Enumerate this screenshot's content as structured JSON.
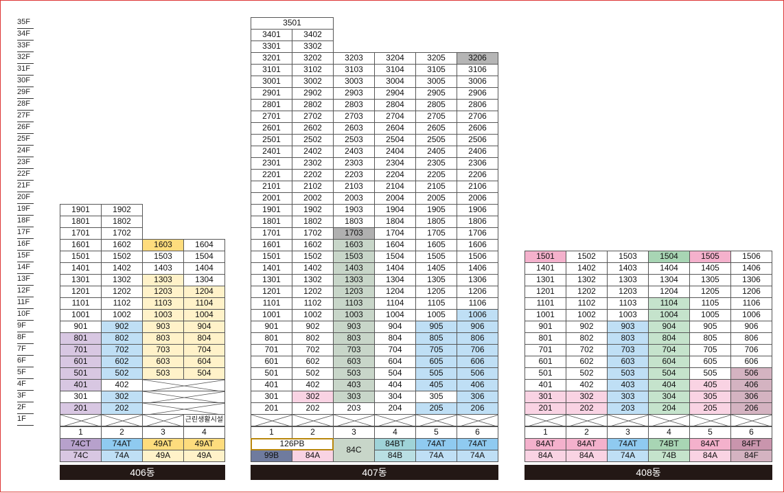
{
  "floor_labels": [
    "35F",
    "34F",
    "33F",
    "32F",
    "31F",
    "30F",
    "29F",
    "28F",
    "27F",
    "26F",
    "25F",
    "24F",
    "23F",
    "22F",
    "21F",
    "20F",
    "19F",
    "18F",
    "17F",
    "16F",
    "15F",
    "14F",
    "13F",
    "12F",
    "11F",
    "10F",
    "9F",
    "8F",
    "7F",
    "6F",
    "5F",
    "4F",
    "3F",
    "2F",
    "1F"
  ],
  "colors": {
    "white": "#ffffff",
    "purple": "#d8c7e2",
    "purple_dark": "#b7a1cc",
    "blue": "#bfdff5",
    "blue_mid": "#8fcaf0",
    "yellow": "#fff2c9",
    "yellow_dark": "#fedc7d",
    "sage": "#c8d6c9",
    "sage_top": "#b0b0b0",
    "pink": "#f9d3e3",
    "pink_mid": "#f4b1cc",
    "mauve": "#d4b3c1",
    "mauve_dark": "#c995ad",
    "green": "#a8d5b4",
    "green_light": "#c5e3cc",
    "gray_top": "#b5b5b5",
    "navy": "#6f7b9e",
    "teal": "#9fd3d8",
    "teal_light": "#b9dfe3"
  },
  "buildings": [
    {
      "name": "406동",
      "line_numbers": [
        "1",
        "2",
        "3",
        "4"
      ],
      "lines": [
        {
          "type_top": "74CT",
          "type_bottom": "74C",
          "top_color": "purple_dark",
          "bottom_color": "purple"
        },
        {
          "type_top": "74AT",
          "type_bottom": "74A",
          "top_color": "blue_mid",
          "bottom_color": "blue"
        },
        {
          "type_top": "49AT",
          "type_bottom": "49A",
          "top_color": "yellow_dark",
          "bottom_color": "yellow"
        },
        {
          "type_top": "49AT",
          "type_bottom": "49A",
          "top_color": "yellow_dark",
          "bottom_color": "yellow"
        }
      ],
      "amenity_label": "근린생활시설"
    },
    {
      "name": "407동",
      "line_numbers": [
        "1",
        "2",
        "3",
        "4",
        "5",
        "6"
      ],
      "merged_top_label": "126PB",
      "lines": [
        {
          "type_bottom": "99B",
          "bottom_color": "navy"
        },
        {
          "type_bottom": "84A",
          "bottom_color": "pink"
        },
        {
          "type_merged": "84C",
          "bottom_color": "sage"
        },
        {
          "type_top": "84BT",
          "type_bottom": "84B",
          "top_color": "teal",
          "bottom_color": "teal_light"
        },
        {
          "type_top": "74AT",
          "type_bottom": "74A",
          "top_color": "blue_mid",
          "bottom_color": "blue"
        },
        {
          "type_top": "74AT",
          "type_bottom": "74A",
          "top_color": "blue_mid",
          "bottom_color": "blue"
        }
      ]
    },
    {
      "name": "408동",
      "line_numbers": [
        "1",
        "2",
        "3",
        "4",
        "5",
        "6"
      ],
      "lines": [
        {
          "type_top": "84AT",
          "type_bottom": "84A",
          "top_color": "pink_mid",
          "bottom_color": "pink"
        },
        {
          "type_top": "84AT",
          "type_bottom": "84A",
          "top_color": "pink_mid",
          "bottom_color": "pink"
        },
        {
          "type_top": "74AT",
          "type_bottom": "74A",
          "top_color": "blue_mid",
          "bottom_color": "blue"
        },
        {
          "type_top": "74BT",
          "type_bottom": "74B",
          "top_color": "green",
          "bottom_color": "green_light"
        },
        {
          "type_top": "84AT",
          "type_bottom": "84A",
          "top_color": "pink_mid",
          "bottom_color": "pink"
        },
        {
          "type_top": "84FT",
          "type_bottom": "84F",
          "top_color": "mauve_dark",
          "bottom_color": "mauve"
        }
      ]
    }
  ],
  "units_406": [
    [
      "1901",
      "white"
    ],
    [
      "1902",
      "white"
    ],
    [
      "1801",
      "white"
    ],
    [
      "1802",
      "white"
    ],
    [
      "1701",
      "white"
    ],
    [
      "1702",
      "white"
    ],
    [
      "1601",
      "white"
    ],
    [
      "1602",
      "white"
    ],
    [
      "1603",
      "yellow_dark"
    ],
    [
      "1604",
      "white"
    ],
    [
      "1501",
      "white"
    ],
    [
      "1502",
      "white"
    ],
    [
      "1503",
      "white"
    ],
    [
      "1504",
      "white"
    ],
    [
      "1401",
      "white"
    ],
    [
      "1402",
      "white"
    ],
    [
      "1403",
      "white"
    ],
    [
      "1404",
      "white"
    ],
    [
      "1301",
      "white"
    ],
    [
      "1302",
      "white"
    ],
    [
      "1303",
      "yellow"
    ],
    [
      "1304",
      "white"
    ],
    [
      "1201",
      "white"
    ],
    [
      "1202",
      "white"
    ],
    [
      "1203",
      "yellow"
    ],
    [
      "1204",
      "yellow"
    ],
    [
      "1101",
      "white"
    ],
    [
      "1102",
      "white"
    ],
    [
      "1103",
      "yellow"
    ],
    [
      "1104",
      "yellow"
    ],
    [
      "1001",
      "white"
    ],
    [
      "1002",
      "white"
    ],
    [
      "1003",
      "yellow"
    ],
    [
      "1004",
      "yellow"
    ],
    [
      "901",
      "white"
    ],
    [
      "902",
      "blue"
    ],
    [
      "903",
      "yellow"
    ],
    [
      "904",
      "yellow"
    ],
    [
      "801",
      "purple"
    ],
    [
      "802",
      "blue"
    ],
    [
      "803",
      "yellow"
    ],
    [
      "804",
      "yellow"
    ],
    [
      "701",
      "purple"
    ],
    [
      "702",
      "blue"
    ],
    [
      "703",
      "yellow"
    ],
    [
      "704",
      "yellow"
    ],
    [
      "601",
      "purple"
    ],
    [
      "602",
      "blue"
    ],
    [
      "603",
      "yellow"
    ],
    [
      "604",
      "yellow"
    ],
    [
      "501",
      "purple"
    ],
    [
      "502",
      "blue"
    ],
    [
      "503",
      "yellow"
    ],
    [
      "504",
      "yellow"
    ],
    [
      "401",
      "purple"
    ],
    [
      "402",
      "white"
    ],
    [
      "301",
      "white"
    ],
    [
      "302",
      "blue"
    ],
    [
      "201",
      "purple"
    ],
    [
      "202",
      "blue"
    ]
  ],
  "units_407": [
    [
      "3501",
      "white"
    ],
    [
      "3401",
      "white"
    ],
    [
      "3402",
      "white"
    ],
    [
      "3301",
      "white"
    ],
    [
      "3302",
      "white"
    ],
    [
      "3201",
      "white"
    ],
    [
      "3202",
      "white"
    ],
    [
      "3203",
      "white"
    ],
    [
      "3204",
      "white"
    ],
    [
      "3205",
      "white"
    ],
    [
      "3206",
      "gray_top"
    ],
    [
      "3101",
      "white"
    ],
    [
      "3102",
      "white"
    ],
    [
      "3103",
      "white"
    ],
    [
      "3104",
      "white"
    ],
    [
      "3105",
      "white"
    ],
    [
      "3106",
      "white"
    ],
    [
      "3001",
      "white"
    ],
    [
      "3002",
      "white"
    ],
    [
      "3003",
      "white"
    ],
    [
      "3004",
      "white"
    ],
    [
      "3005",
      "white"
    ],
    [
      "3006",
      "white"
    ],
    [
      "2901",
      "white"
    ],
    [
      "2902",
      "white"
    ],
    [
      "2903",
      "white"
    ],
    [
      "2904",
      "white"
    ],
    [
      "2905",
      "white"
    ],
    [
      "2906",
      "white"
    ],
    [
      "2801",
      "white"
    ],
    [
      "2802",
      "white"
    ],
    [
      "2803",
      "white"
    ],
    [
      "2804",
      "white"
    ],
    [
      "2805",
      "white"
    ],
    [
      "2806",
      "white"
    ],
    [
      "2701",
      "white"
    ],
    [
      "2702",
      "white"
    ],
    [
      "2703",
      "white"
    ],
    [
      "2704",
      "white"
    ],
    [
      "2705",
      "white"
    ],
    [
      "2706",
      "white"
    ],
    [
      "2601",
      "white"
    ],
    [
      "2602",
      "white"
    ],
    [
      "2603",
      "white"
    ],
    [
      "2604",
      "white"
    ],
    [
      "2605",
      "white"
    ],
    [
      "2606",
      "white"
    ],
    [
      "2501",
      "white"
    ],
    [
      "2502",
      "white"
    ],
    [
      "2503",
      "white"
    ],
    [
      "2504",
      "white"
    ],
    [
      "2505",
      "white"
    ],
    [
      "2506",
      "white"
    ],
    [
      "2401",
      "white"
    ],
    [
      "2402",
      "white"
    ],
    [
      "2403",
      "white"
    ],
    [
      "2404",
      "white"
    ],
    [
      "2405",
      "white"
    ],
    [
      "2406",
      "white"
    ],
    [
      "2301",
      "white"
    ],
    [
      "2302",
      "white"
    ],
    [
      "2303",
      "white"
    ],
    [
      "2304",
      "white"
    ],
    [
      "2305",
      "white"
    ],
    [
      "2306",
      "white"
    ],
    [
      "2201",
      "white"
    ],
    [
      "2202",
      "white"
    ],
    [
      "2203",
      "white"
    ],
    [
      "2204",
      "white"
    ],
    [
      "2205",
      "white"
    ],
    [
      "2206",
      "white"
    ],
    [
      "2101",
      "white"
    ],
    [
      "2102",
      "white"
    ],
    [
      "2103",
      "white"
    ],
    [
      "2104",
      "white"
    ],
    [
      "2105",
      "white"
    ],
    [
      "2106",
      "white"
    ],
    [
      "2001",
      "white"
    ],
    [
      "2002",
      "white"
    ],
    [
      "2003",
      "white"
    ],
    [
      "2004",
      "white"
    ],
    [
      "2005",
      "white"
    ],
    [
      "2006",
      "white"
    ],
    [
      "1901",
      "white"
    ],
    [
      "1902",
      "white"
    ],
    [
      "1903",
      "white"
    ],
    [
      "1904",
      "white"
    ],
    [
      "1905",
      "white"
    ],
    [
      "1906",
      "white"
    ],
    [
      "1801",
      "white"
    ],
    [
      "1802",
      "white"
    ],
    [
      "1803",
      "white"
    ],
    [
      "1804",
      "white"
    ],
    [
      "1805",
      "white"
    ],
    [
      "1806",
      "white"
    ],
    [
      "1701",
      "white"
    ],
    [
      "1702",
      "white"
    ],
    [
      "1703",
      "sage_top"
    ],
    [
      "1704",
      "white"
    ],
    [
      "1705",
      "white"
    ],
    [
      "1706",
      "white"
    ],
    [
      "1601",
      "white"
    ],
    [
      "1602",
      "white"
    ],
    [
      "1603",
      "sage"
    ],
    [
      "1604",
      "white"
    ],
    [
      "1605",
      "white"
    ],
    [
      "1606",
      "white"
    ],
    [
      "1501",
      "white"
    ],
    [
      "1502",
      "white"
    ],
    [
      "1503",
      "sage"
    ],
    [
      "1504",
      "white"
    ],
    [
      "1505",
      "white"
    ],
    [
      "1506",
      "white"
    ],
    [
      "1401",
      "white"
    ],
    [
      "1402",
      "white"
    ],
    [
      "1403",
      "sage"
    ],
    [
      "1404",
      "white"
    ],
    [
      "1405",
      "white"
    ],
    [
      "1406",
      "white"
    ],
    [
      "1301",
      "white"
    ],
    [
      "1302",
      "white"
    ],
    [
      "1303",
      "sage"
    ],
    [
      "1304",
      "white"
    ],
    [
      "1305",
      "white"
    ],
    [
      "1306",
      "white"
    ],
    [
      "1201",
      "white"
    ],
    [
      "1202",
      "white"
    ],
    [
      "1203",
      "sage"
    ],
    [
      "1204",
      "white"
    ],
    [
      "1205",
      "white"
    ],
    [
      "1206",
      "white"
    ],
    [
      "1101",
      "white"
    ],
    [
      "1102",
      "white"
    ],
    [
      "1103",
      "sage"
    ],
    [
      "1104",
      "white"
    ],
    [
      "1105",
      "white"
    ],
    [
      "1106",
      "white"
    ],
    [
      "1001",
      "white"
    ],
    [
      "1002",
      "white"
    ],
    [
      "1003",
      "sage"
    ],
    [
      "1004",
      "white"
    ],
    [
      "1005",
      "white"
    ],
    [
      "1006",
      "blue"
    ],
    [
      "901",
      "white"
    ],
    [
      "902",
      "white"
    ],
    [
      "903",
      "sage"
    ],
    [
      "904",
      "white"
    ],
    [
      "905",
      "blue"
    ],
    [
      "906",
      "blue"
    ],
    [
      "801",
      "white"
    ],
    [
      "802",
      "white"
    ],
    [
      "803",
      "sage"
    ],
    [
      "804",
      "white"
    ],
    [
      "805",
      "blue"
    ],
    [
      "806",
      "blue"
    ],
    [
      "701",
      "white"
    ],
    [
      "702",
      "white"
    ],
    [
      "703",
      "sage"
    ],
    [
      "704",
      "white"
    ],
    [
      "705",
      "blue"
    ],
    [
      "706",
      "blue"
    ],
    [
      "601",
      "white"
    ],
    [
      "602",
      "white"
    ],
    [
      "603",
      "sage"
    ],
    [
      "604",
      "white"
    ],
    [
      "605",
      "blue"
    ],
    [
      "606",
      "blue"
    ],
    [
      "501",
      "white"
    ],
    [
      "502",
      "white"
    ],
    [
      "503",
      "sage"
    ],
    [
      "504",
      "white"
    ],
    [
      "505",
      "blue"
    ],
    [
      "506",
      "blue"
    ],
    [
      "401",
      "white"
    ],
    [
      "402",
      "white"
    ],
    [
      "403",
      "sage"
    ],
    [
      "404",
      "white"
    ],
    [
      "405",
      "blue"
    ],
    [
      "406",
      "blue"
    ],
    [
      "301",
      "white"
    ],
    [
      "302",
      "pink"
    ],
    [
      "303",
      "sage"
    ],
    [
      "304",
      "white"
    ],
    [
      "305",
      "white"
    ],
    [
      "306",
      "blue"
    ],
    [
      "201",
      "white"
    ],
    [
      "202",
      "white"
    ],
    [
      "203",
      "white"
    ],
    [
      "204",
      "white"
    ],
    [
      "205",
      "blue"
    ],
    [
      "206",
      "blue"
    ]
  ],
  "units_408": [
    [
      "1501",
      "pink_mid"
    ],
    [
      "1502",
      "white"
    ],
    [
      "1503",
      "white"
    ],
    [
      "1504",
      "green"
    ],
    [
      "1505",
      "pink_mid"
    ],
    [
      "1506",
      "white"
    ],
    [
      "1401",
      "white"
    ],
    [
      "1402",
      "white"
    ],
    [
      "1403",
      "white"
    ],
    [
      "1404",
      "white"
    ],
    [
      "1405",
      "white"
    ],
    [
      "1406",
      "white"
    ],
    [
      "1301",
      "white"
    ],
    [
      "1302",
      "white"
    ],
    [
      "1303",
      "white"
    ],
    [
      "1304",
      "white"
    ],
    [
      "1305",
      "white"
    ],
    [
      "1306",
      "white"
    ],
    [
      "1201",
      "white"
    ],
    [
      "1202",
      "white"
    ],
    [
      "1203",
      "white"
    ],
    [
      "1204",
      "white"
    ],
    [
      "1205",
      "white"
    ],
    [
      "1206",
      "white"
    ],
    [
      "1101",
      "white"
    ],
    [
      "1102",
      "white"
    ],
    [
      "1103",
      "white"
    ],
    [
      "1104",
      "green_light"
    ],
    [
      "1105",
      "white"
    ],
    [
      "1106",
      "white"
    ],
    [
      "1001",
      "white"
    ],
    [
      "1002",
      "white"
    ],
    [
      "1003",
      "white"
    ],
    [
      "1004",
      "green_light"
    ],
    [
      "1005",
      "white"
    ],
    [
      "1006",
      "white"
    ],
    [
      "901",
      "white"
    ],
    [
      "902",
      "white"
    ],
    [
      "903",
      "blue"
    ],
    [
      "904",
      "green_light"
    ],
    [
      "905",
      "white"
    ],
    [
      "906",
      "white"
    ],
    [
      "801",
      "white"
    ],
    [
      "802",
      "white"
    ],
    [
      "803",
      "blue"
    ],
    [
      "804",
      "green_light"
    ],
    [
      "805",
      "white"
    ],
    [
      "806",
      "white"
    ],
    [
      "701",
      "white"
    ],
    [
      "702",
      "white"
    ],
    [
      "703",
      "blue"
    ],
    [
      "704",
      "green_light"
    ],
    [
      "705",
      "white"
    ],
    [
      "706",
      "white"
    ],
    [
      "601",
      "white"
    ],
    [
      "602",
      "white"
    ],
    [
      "603",
      "blue"
    ],
    [
      "604",
      "green_light"
    ],
    [
      "605",
      "white"
    ],
    [
      "606",
      "white"
    ],
    [
      "501",
      "white"
    ],
    [
      "502",
      "white"
    ],
    [
      "503",
      "blue"
    ],
    [
      "504",
      "green_light"
    ],
    [
      "505",
      "white"
    ],
    [
      "506",
      "mauve"
    ],
    [
      "401",
      "white"
    ],
    [
      "402",
      "white"
    ],
    [
      "403",
      "blue"
    ],
    [
      "404",
      "green_light"
    ],
    [
      "405",
      "pink"
    ],
    [
      "406",
      "mauve"
    ],
    [
      "301",
      "pink"
    ],
    [
      "302",
      "pink"
    ],
    [
      "303",
      "blue"
    ],
    [
      "304",
      "green_light"
    ],
    [
      "305",
      "pink"
    ],
    [
      "306",
      "mauve"
    ],
    [
      "201",
      "pink"
    ],
    [
      "202",
      "pink"
    ],
    [
      "203",
      "blue"
    ],
    [
      "204",
      "green_light"
    ],
    [
      "205",
      "pink"
    ],
    [
      "206",
      "mauve"
    ]
  ]
}
